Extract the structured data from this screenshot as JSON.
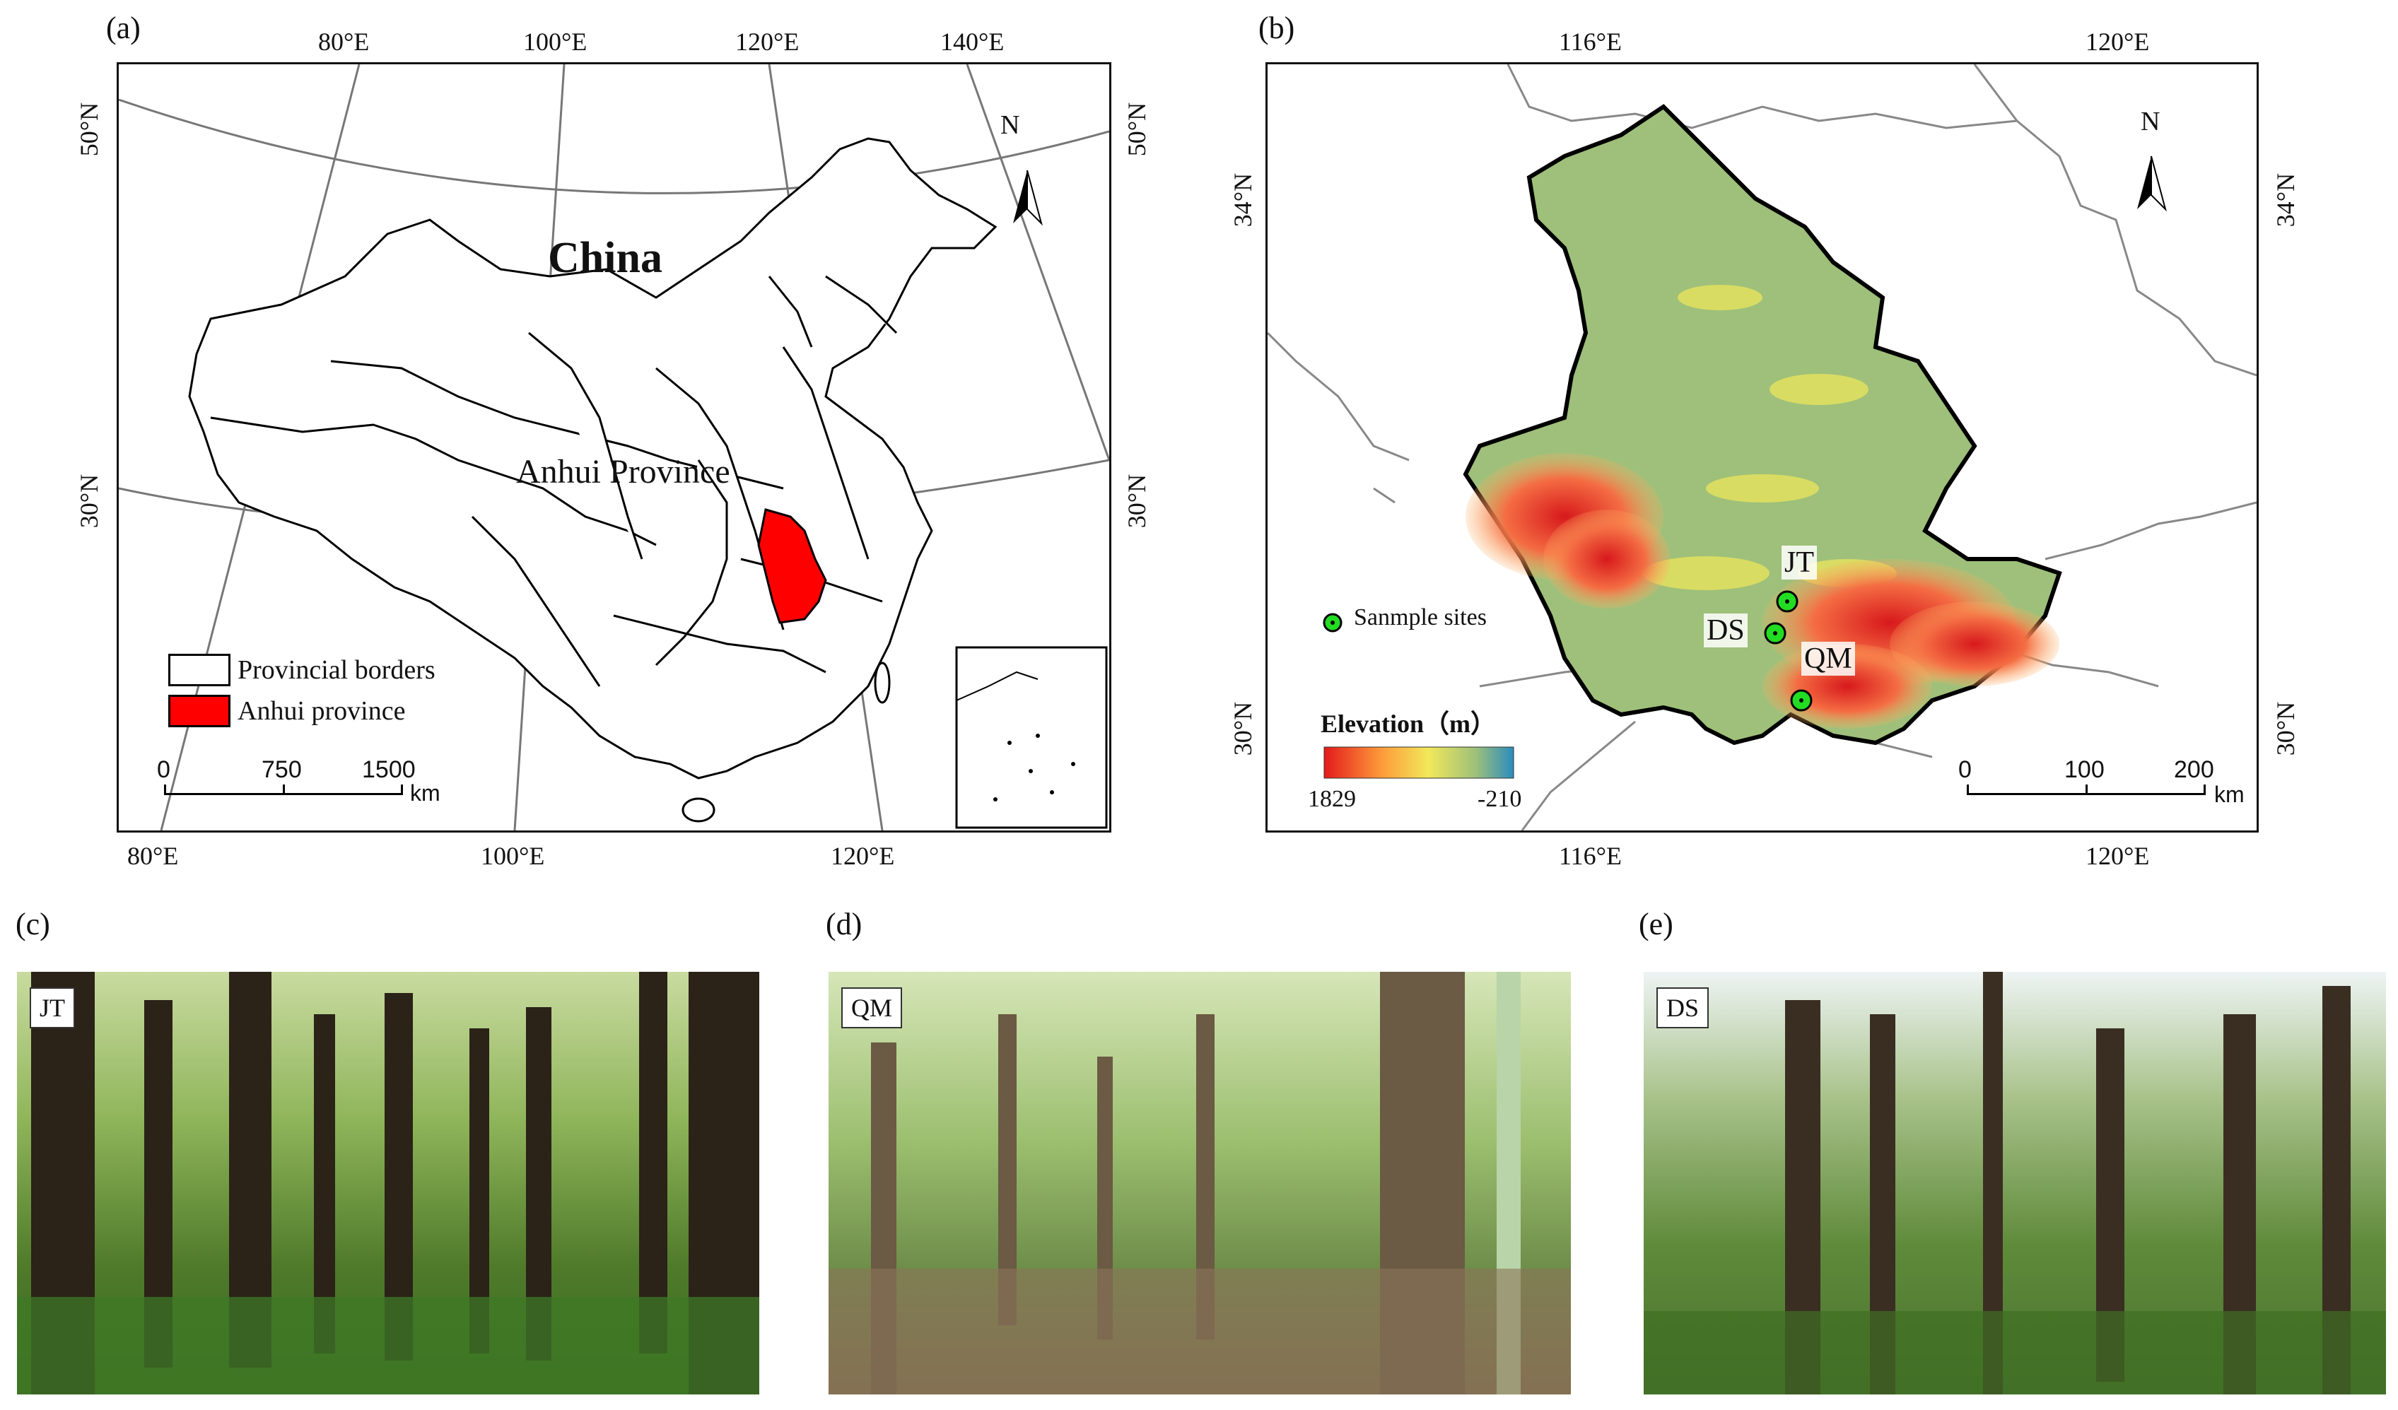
{
  "panels": {
    "a": {
      "label": "(a)",
      "country_label": "China",
      "province_label": "Anhui Province",
      "top_lon_ticks": [
        "80°E",
        "100°E",
        "120°E",
        "140°E"
      ],
      "bottom_lon_ticks": [
        "80°E",
        "100°E",
        "120°E"
      ],
      "left_lat_ticks": [
        "50°N",
        "30°N"
      ],
      "right_lat_ticks": [
        "50°N",
        "30°N"
      ],
      "north_label": "N",
      "legend": {
        "borders": "Provincial borders",
        "anhui": "Anhui province"
      },
      "scale": {
        "ticks": [
          "0",
          "750",
          "1500"
        ],
        "unit": "km"
      },
      "colors": {
        "anhui": "#ff0000",
        "borders": "#000000",
        "graticule": "#777777"
      }
    },
    "b": {
      "label": "(b)",
      "top_lon_ticks": [
        "116°E",
        "120°E"
      ],
      "bottom_lon_ticks": [
        "116°E",
        "120°E"
      ],
      "left_lat_ticks": [
        "34°N",
        "30°N"
      ],
      "right_lat_ticks": [
        "34°N",
        "30°N"
      ],
      "north_label": "N",
      "legend": {
        "sites": "Sanmple sites",
        "elevation_title": "Elevation（m）",
        "elev_max": "1829",
        "elev_min": "-210"
      },
      "sites": [
        "JT",
        "DS",
        "QM"
      ],
      "scale": {
        "ticks": [
          "0",
          "100",
          "200"
        ],
        "unit": "km"
      },
      "colors": {
        "low": "#2b8cbe",
        "mid": "#9ec07a",
        "high_yellow": "#f2e85a",
        "high": "#e31a1c",
        "site": "#22dd22"
      }
    },
    "c": {
      "label": "(c)",
      "tag": "JT"
    },
    "d": {
      "label": "(d)",
      "tag": "QM"
    },
    "e": {
      "label": "(e)",
      "tag": "DS"
    }
  }
}
